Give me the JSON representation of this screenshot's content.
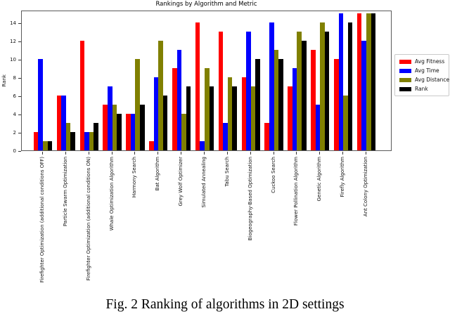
{
  "figure": {
    "caption": "Fig. 2 Ranking of algorithms in 2D settings"
  },
  "chart_data": {
    "type": "bar",
    "title": "Rankings by Algorithm and Metric",
    "xlabel": "",
    "ylabel": "Rank",
    "grid": false,
    "legend_position": "right-outside",
    "ylim": [
      0,
      15.4
    ],
    "yticks": [
      0,
      2,
      4,
      6,
      8,
      10,
      12,
      14
    ],
    "categories": [
      "Firefighter Optimization (additional conditions OFF)",
      "Particle Swarm Optimization",
      "Firefighter Optimization (additional conditions ON)",
      "Whale Optimization Algorithm",
      "Harmony Search",
      "Bat Algorithm",
      "Grey Wolf Optimizer",
      "Simulated Annealing",
      "Tabu Search",
      "Biogeography-Based Optimization",
      "Cuckoo Search",
      "Flower Pollination Algorithm",
      "Genetic Algorithm",
      "Firefly Algorithm",
      "Ant Colony Optimization"
    ],
    "series": [
      {
        "name": "Avg Fitness",
        "color": "#ff0000",
        "values": [
          2,
          6,
          12,
          5,
          4,
          1,
          9,
          14,
          13,
          8,
          3,
          7,
          11,
          10,
          15
        ]
      },
      {
        "name": "Avg Time",
        "color": "#0000ff",
        "values": [
          10,
          6,
          2,
          7,
          4,
          8,
          11,
          1,
          3,
          13,
          14,
          9,
          5,
          15,
          12
        ]
      },
      {
        "name": "Avg Distance",
        "color": "#808000",
        "values": [
          1,
          3,
          2,
          5,
          10,
          12,
          4,
          9,
          8,
          7,
          11,
          13,
          14,
          6,
          15
        ]
      },
      {
        "name": "Rank",
        "color": "#000000",
        "values": [
          1,
          2,
          3,
          4,
          5,
          6,
          7,
          7,
          7,
          10,
          10,
          12,
          13,
          14,
          15
        ]
      }
    ]
  }
}
